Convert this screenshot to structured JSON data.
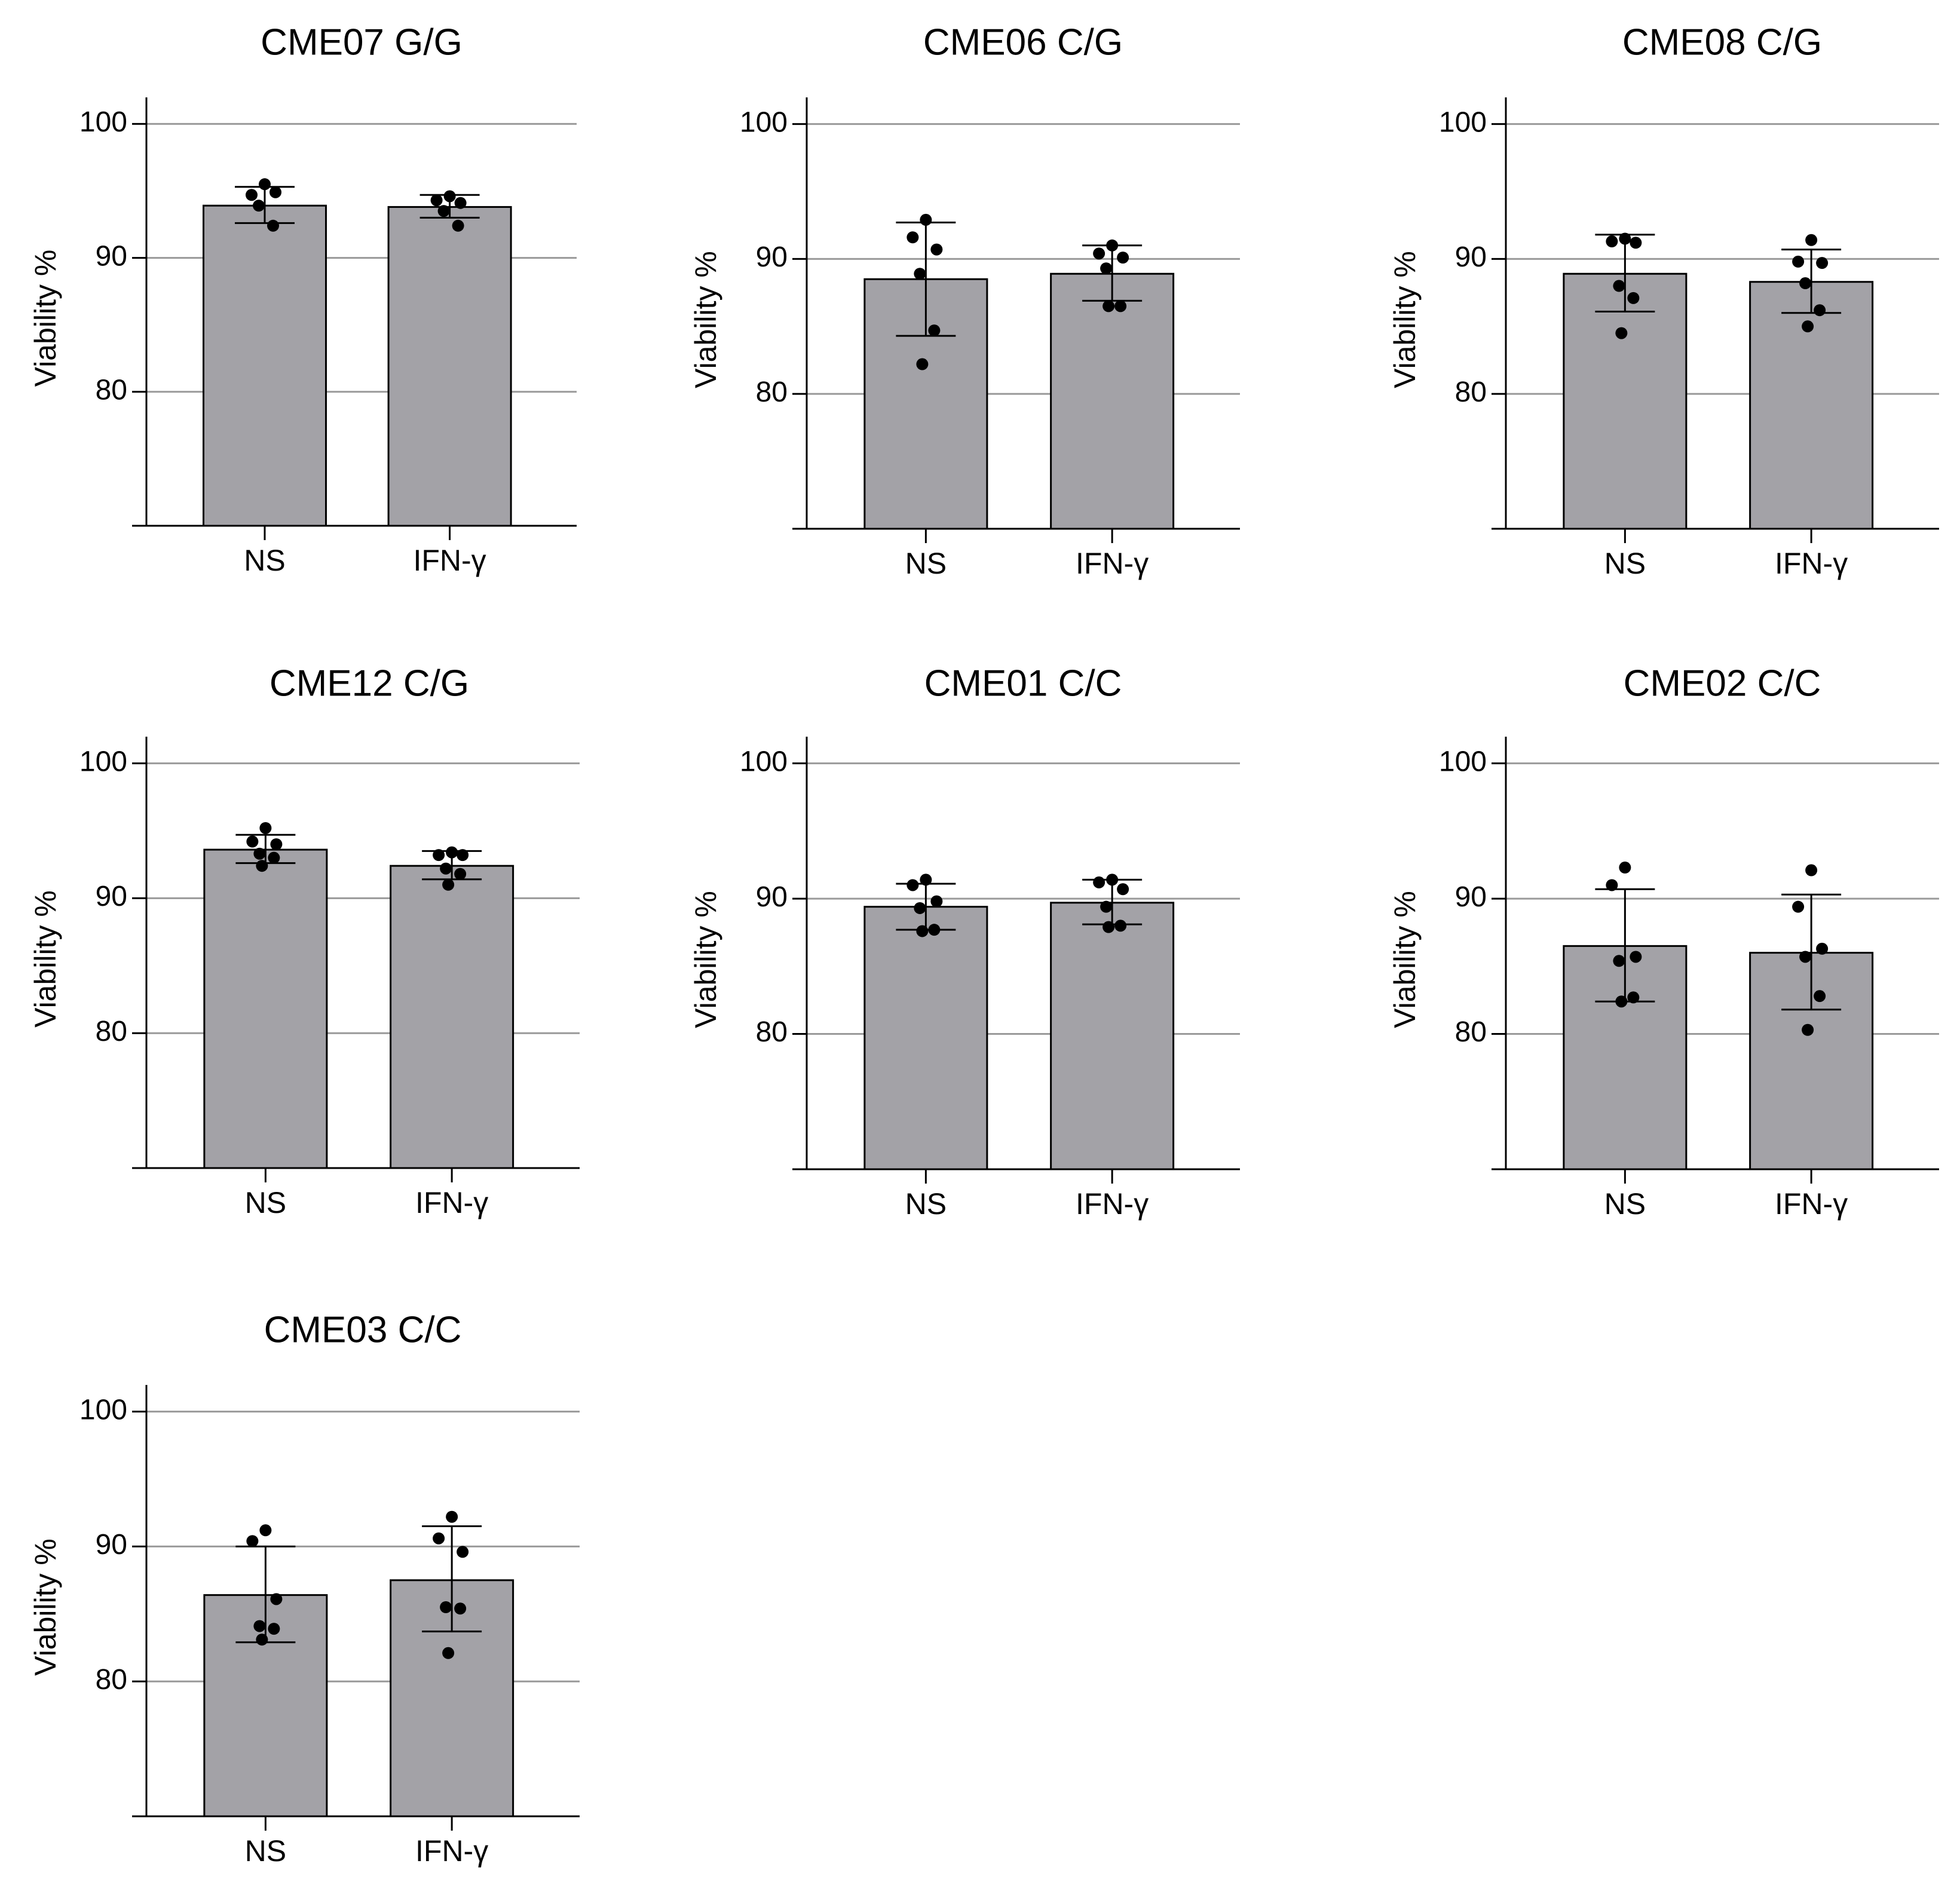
{
  "chart_data": [
    {
      "type": "bar",
      "title": "CME07 G/G",
      "categories": [
        "NS",
        "IFN-γ"
      ],
      "ylabel": "Viability %",
      "xlabel": "",
      "ylim": [
        70,
        101
      ],
      "yticks": [
        80,
        90,
        100
      ],
      "grid": true,
      "values": [
        93.9,
        93.8
      ],
      "error_low": [
        92.6,
        93.0
      ],
      "error_high": [
        95.3,
        94.7
      ],
      "points": [
        [
          95.5,
          94.7,
          94.9,
          93.9,
          92.4
        ],
        [
          94.6,
          94.3,
          94.1,
          93.5,
          92.4
        ]
      ]
    },
    {
      "type": "bar",
      "title": "CME06 C/G",
      "categories": [
        "NS",
        "IFN-γ"
      ],
      "ylabel": "Viability %",
      "xlabel": "",
      "ylim": [
        70,
        101
      ],
      "yticks": [
        80,
        90,
        100
      ],
      "grid": true,
      "values": [
        88.5,
        88.9
      ],
      "error_low": [
        84.3,
        86.9
      ],
      "error_high": [
        92.7,
        91.0
      ],
      "points": [
        [
          92.9,
          91.6,
          90.7,
          88.9,
          84.7,
          82.2
        ],
        [
          91.0,
          90.4,
          90.1,
          89.3,
          86.5,
          86.5
        ]
      ]
    },
    {
      "type": "bar",
      "title": "CME08 C/G",
      "categories": [
        "NS",
        "IFN-γ"
      ],
      "ylabel": "Viability %",
      "xlabel": "",
      "ylim": [
        70,
        101
      ],
      "yticks": [
        80,
        90,
        100
      ],
      "grid": true,
      "values": [
        88.9,
        88.3
      ],
      "error_low": [
        86.1,
        86.0
      ],
      "error_high": [
        91.8,
        90.7
      ],
      "points": [
        [
          91.5,
          91.3,
          91.2,
          88.0,
          87.1,
          84.5
        ],
        [
          91.4,
          89.8,
          89.7,
          88.2,
          86.2,
          85.0
        ]
      ]
    },
    {
      "type": "bar",
      "title": "CME12 C/G",
      "categories": [
        "NS",
        "IFN-γ"
      ],
      "ylabel": "Viability %",
      "xlabel": "",
      "ylim": [
        70,
        101
      ],
      "yticks": [
        80,
        90,
        100
      ],
      "grid": true,
      "values": [
        93.6,
        92.4
      ],
      "error_low": [
        92.6,
        91.4
      ],
      "error_high": [
        94.7,
        93.5
      ],
      "points": [
        [
          95.2,
          94.2,
          94.0,
          93.3,
          93.0,
          92.4
        ],
        [
          93.4,
          93.2,
          93.2,
          92.2,
          91.8,
          91.0
        ]
      ]
    },
    {
      "type": "bar",
      "title": "CME01 C/C",
      "categories": [
        "NS",
        "IFN-γ"
      ],
      "ylabel": "Viability %",
      "xlabel": "",
      "ylim": [
        70,
        101
      ],
      "yticks": [
        80,
        90,
        100
      ],
      "grid": true,
      "values": [
        89.4,
        89.7
      ],
      "error_low": [
        87.7,
        88.1
      ],
      "error_high": [
        91.1,
        91.4
      ],
      "points": [
        [
          91.4,
          91.0,
          89.8,
          89.3,
          87.7,
          87.6
        ],
        [
          91.4,
          91.2,
          90.7,
          89.4,
          88.0,
          87.9
        ]
      ]
    },
    {
      "type": "bar",
      "title": "CME02 C/C",
      "categories": [
        "NS",
        "IFN-γ"
      ],
      "ylabel": "Viability %",
      "xlabel": "",
      "ylim": [
        70,
        101
      ],
      "yticks": [
        80,
        90,
        100
      ],
      "grid": true,
      "values": [
        86.5,
        86.0
      ],
      "error_low": [
        82.4,
        81.8
      ],
      "error_high": [
        90.7,
        90.3
      ],
      "points": [
        [
          92.3,
          91.0,
          85.7,
          85.4,
          82.7,
          82.4
        ],
        [
          92.1,
          89.4,
          86.3,
          85.7,
          82.8,
          80.3
        ]
      ]
    },
    {
      "type": "bar",
      "title": "CME03 C/C",
      "categories": [
        "NS",
        "IFN-γ"
      ],
      "ylabel": "Viability %",
      "xlabel": "",
      "ylim": [
        70,
        101
      ],
      "yticks": [
        80,
        90,
        100
      ],
      "grid": true,
      "values": [
        86.4,
        87.5
      ],
      "error_low": [
        82.9,
        83.7
      ],
      "error_high": [
        90.0,
        91.5
      ],
      "points": [
        [
          91.2,
          90.4,
          86.1,
          84.1,
          83.9,
          83.1
        ],
        [
          92.2,
          90.6,
          89.6,
          85.5,
          85.4,
          82.1
        ]
      ]
    }
  ]
}
